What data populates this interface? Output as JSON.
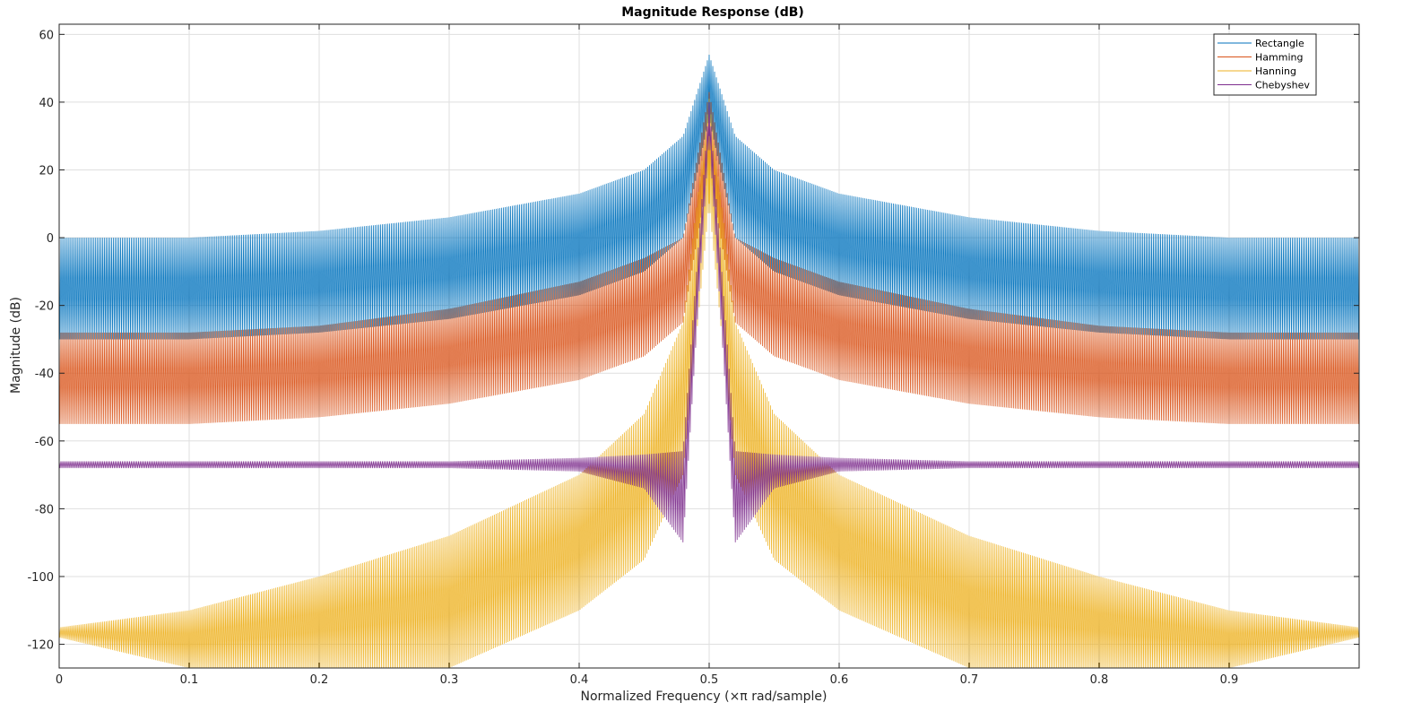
{
  "chart_data": {
    "type": "line",
    "title": "Magnitude Response (dB)",
    "xlabel": "Normalized Frequency (×π rad/sample)",
    "ylabel": "Magnitude (dB)",
    "xlim": [
      0,
      1
    ],
    "ylim": [
      -127,
      63
    ],
    "xticks": [
      0,
      0.1,
      0.2,
      0.3,
      0.4,
      0.5,
      0.6,
      0.7,
      0.8,
      0.9
    ],
    "xtick_labels": [
      "0",
      "0.1",
      "0.2",
      "0.3",
      "0.4",
      "0.5",
      "0.6",
      "0.7",
      "0.8",
      "0.9"
    ],
    "yticks": [
      60,
      40,
      20,
      0,
      -20,
      -40,
      -60,
      -80,
      -100,
      -120
    ],
    "ytick_labels": [
      "60",
      "40",
      "20",
      "0",
      "-20",
      "-40",
      "-60",
      "-80",
      "-100",
      "-120"
    ],
    "grid": true,
    "legend_position": "top-right",
    "series": [
      {
        "name": "Rectangle",
        "color": "#0072bd",
        "peak": {
          "x": 0.5,
          "y": 54
        },
        "upper_envelope": {
          "x": [
            0,
            0.1,
            0.2,
            0.3,
            0.4,
            0.45,
            0.48,
            0.5,
            0.52,
            0.55,
            0.6,
            0.7,
            0.8,
            0.9,
            1.0
          ],
          "y": [
            0,
            0,
            2,
            6,
            13,
            20,
            30,
            54,
            30,
            20,
            13,
            6,
            2,
            0,
            0
          ]
        },
        "lower_envelope": {
          "x": [
            0,
            0.1,
            0.2,
            0.3,
            0.4,
            0.45,
            0.48,
            0.5,
            0.52,
            0.55,
            0.6,
            0.7,
            0.8,
            0.9,
            1.0
          ],
          "y": [
            -30,
            -30,
            -28,
            -24,
            -17,
            -10,
            0,
            35,
            0,
            -10,
            -17,
            -24,
            -28,
            -30,
            -30
          ]
        }
      },
      {
        "name": "Hamming",
        "color": "#d95319",
        "peak": {
          "x": 0.5,
          "y": 43
        },
        "upper_envelope": {
          "x": [
            0,
            0.1,
            0.2,
            0.3,
            0.4,
            0.45,
            0.48,
            0.5,
            0.52,
            0.55,
            0.6,
            0.7,
            0.8,
            0.9,
            1.0
          ],
          "y": [
            -28,
            -28,
            -26,
            -21,
            -13,
            -6,
            0,
            43,
            0,
            -6,
            -13,
            -21,
            -26,
            -28,
            -28
          ]
        },
        "lower_envelope": {
          "x": [
            0,
            0.1,
            0.2,
            0.3,
            0.4,
            0.45,
            0.48,
            0.5,
            0.52,
            0.55,
            0.6,
            0.7,
            0.8,
            0.9,
            1.0
          ],
          "y": [
            -55,
            -55,
            -53,
            -49,
            -42,
            -35,
            -25,
            20,
            -25,
            -35,
            -42,
            -49,
            -53,
            -55,
            -55
          ]
        }
      },
      {
        "name": "Hanning",
        "color": "#edb120",
        "peak": {
          "x": 0.5,
          "y": 41
        },
        "upper_envelope": {
          "x": [
            0,
            0.1,
            0.2,
            0.3,
            0.4,
            0.45,
            0.48,
            0.5,
            0.52,
            0.55,
            0.6,
            0.7,
            0.8,
            0.9,
            1.0
          ],
          "y": [
            -115,
            -110,
            -100,
            -88,
            -70,
            -52,
            -25,
            41,
            -25,
            -52,
            -70,
            -88,
            -100,
            -110,
            -115
          ]
        },
        "lower_envelope": {
          "x": [
            0,
            0.1,
            0.2,
            0.3,
            0.4,
            0.45,
            0.48,
            0.5,
            0.52,
            0.55,
            0.6,
            0.7,
            0.8,
            0.9,
            1.0
          ],
          "y": [
            -118,
            -127,
            -127,
            -127,
            -110,
            -95,
            -70,
            10,
            -70,
            -95,
            -110,
            -127,
            -127,
            -127,
            -118
          ]
        }
      },
      {
        "name": "Chebyshev",
        "color": "#7e2f8e",
        "peak": {
          "x": 0.5,
          "y": 40
        },
        "upper_envelope": {
          "x": [
            0,
            0.1,
            0.2,
            0.3,
            0.4,
            0.45,
            0.48,
            0.5,
            0.52,
            0.55,
            0.6,
            0.7,
            0.8,
            0.9,
            1.0
          ],
          "y": [
            -66,
            -66,
            -66,
            -66,
            -65,
            -64,
            -63,
            40,
            -63,
            -64,
            -65,
            -66,
            -66,
            -66,
            -66
          ]
        },
        "lower_envelope": {
          "x": [
            0,
            0.1,
            0.2,
            0.3,
            0.4,
            0.45,
            0.48,
            0.5,
            0.52,
            0.55,
            0.6,
            0.7,
            0.8,
            0.9,
            1.0
          ],
          "y": [
            -68,
            -68,
            -68,
            -68,
            -69,
            -74,
            -90,
            30,
            -90,
            -74,
            -69,
            -68,
            -68,
            -68,
            -68
          ]
        }
      }
    ]
  }
}
